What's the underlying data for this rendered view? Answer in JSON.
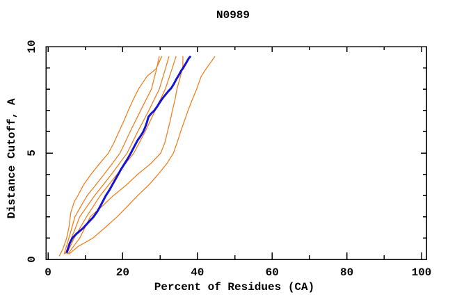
{
  "chart_data": {
    "type": "line",
    "title": "N0989",
    "xlabel": "Percent of Residues (CA)",
    "ylabel": "Distance Cutoff, A",
    "xlim": [
      0,
      100
    ],
    "ylim": [
      0,
      10
    ],
    "x_major_ticks": [
      0,
      20,
      40,
      60,
      80,
      100
    ],
    "x_minor_ticks": [
      10,
      30,
      50,
      70,
      90
    ],
    "y_major_ticks": [
      0,
      5,
      10
    ],
    "y_minor_ticks": [
      1,
      2,
      3,
      4,
      6,
      7,
      8,
      9
    ],
    "grid": false,
    "legend": "none",
    "frame_color": "#000000",
    "orange_color": "#ee8122",
    "blue_color": "#1414d2",
    "series": [
      {
        "name": "orange-1",
        "color": "#ee8122",
        "width": 1.3,
        "points": [
          [
            3.0,
            0.15
          ],
          [
            4.0,
            0.5
          ],
          [
            5.0,
            1.0
          ],
          [
            5.6,
            1.5
          ],
          [
            6.1,
            2.2
          ],
          [
            7.0,
            2.7
          ],
          [
            8.0,
            3.0
          ],
          [
            9.5,
            3.5
          ],
          [
            11.5,
            4.0
          ],
          [
            13.8,
            4.5
          ],
          [
            16.2,
            5.0
          ],
          [
            17.7,
            5.5
          ],
          [
            19.0,
            6.0
          ],
          [
            20.3,
            6.5
          ],
          [
            21.5,
            7.0
          ],
          [
            22.8,
            7.5
          ],
          [
            24.2,
            8.0
          ],
          [
            26.5,
            8.6
          ],
          [
            28.9,
            8.95
          ],
          [
            30.5,
            9.55
          ]
        ]
      },
      {
        "name": "orange-2",
        "color": "#ee8122",
        "width": 1.3,
        "points": [
          [
            4.3,
            0.25
          ],
          [
            5.6,
            1.0
          ],
          [
            7.2,
            2.0
          ],
          [
            8.8,
            2.5
          ],
          [
            10.5,
            3.0
          ],
          [
            12.8,
            3.5
          ],
          [
            15.0,
            4.0
          ],
          [
            17.2,
            4.5
          ],
          [
            19.3,
            5.0
          ],
          [
            22.0,
            6.0
          ],
          [
            24.8,
            7.0
          ],
          [
            27.7,
            8.0
          ],
          [
            29.0,
            8.9
          ],
          [
            29.8,
            9.55
          ]
        ]
      },
      {
        "name": "orange-3",
        "color": "#ee8122",
        "width": 1.3,
        "points": [
          [
            4.6,
            0.25
          ],
          [
            6.3,
            1.0
          ],
          [
            8.5,
            2.0
          ],
          [
            12.5,
            3.0
          ],
          [
            17.0,
            4.0
          ],
          [
            21.2,
            5.0
          ],
          [
            24.0,
            6.0
          ],
          [
            27.0,
            7.0
          ],
          [
            29.8,
            8.0
          ],
          [
            31.5,
            9.0
          ],
          [
            32.4,
            9.55
          ]
        ]
      },
      {
        "name": "orange-4",
        "color": "#ee8122",
        "width": 1.3,
        "points": [
          [
            5.0,
            0.25
          ],
          [
            7.0,
            1.0
          ],
          [
            10.3,
            2.0
          ],
          [
            14.0,
            3.0
          ],
          [
            18.5,
            4.0
          ],
          [
            23.0,
            5.0
          ],
          [
            26.0,
            6.0
          ],
          [
            28.7,
            7.0
          ],
          [
            31.4,
            8.0
          ],
          [
            33.3,
            9.0
          ],
          [
            34.3,
            9.55
          ]
        ]
      },
      {
        "name": "orange-5",
        "color": "#ee8122",
        "width": 1.3,
        "points": [
          [
            5.3,
            0.25
          ],
          [
            8.5,
            1.0
          ],
          [
            11.3,
            2.0
          ],
          [
            14.5,
            2.5
          ],
          [
            17.5,
            3.0
          ],
          [
            21.0,
            3.5
          ],
          [
            24.0,
            4.0
          ],
          [
            27.5,
            4.5
          ],
          [
            30.2,
            5.0
          ],
          [
            31.3,
            5.5
          ],
          [
            32.0,
            6.0
          ],
          [
            32.7,
            6.5
          ],
          [
            33.3,
            7.0
          ],
          [
            34.0,
            7.5
          ],
          [
            34.5,
            8.0
          ],
          [
            35.3,
            8.5
          ],
          [
            35.9,
            8.9
          ],
          [
            36.1,
            9.1
          ],
          [
            36.1,
            9.55
          ]
        ]
      },
      {
        "name": "orange-6",
        "color": "#ee8122",
        "width": 1.3,
        "points": [
          [
            5.6,
            0.25
          ],
          [
            8.0,
            0.6
          ],
          [
            12.0,
            1.0
          ],
          [
            15.3,
            1.5
          ],
          [
            18.5,
            2.0
          ],
          [
            21.3,
            2.5
          ],
          [
            24.0,
            3.0
          ],
          [
            27.0,
            3.5
          ],
          [
            29.5,
            4.0
          ],
          [
            31.8,
            4.5
          ],
          [
            33.6,
            5.0
          ],
          [
            34.6,
            5.5
          ],
          [
            35.5,
            6.0
          ],
          [
            36.5,
            6.5
          ],
          [
            37.5,
            7.0
          ],
          [
            38.6,
            7.5
          ],
          [
            39.8,
            8.0
          ],
          [
            41.0,
            8.6
          ],
          [
            42.5,
            9.0
          ],
          [
            44.7,
            9.54
          ]
        ]
      },
      {
        "name": "blue-bold",
        "color": "#1414d2",
        "width": 3,
        "points": [
          [
            5.0,
            0.3
          ],
          [
            5.8,
            0.75
          ],
          [
            6.5,
            1.0
          ],
          [
            7.6,
            1.2
          ],
          [
            9.3,
            1.45
          ],
          [
            10.6,
            1.7
          ],
          [
            12.2,
            2.0
          ],
          [
            13.2,
            2.25
          ],
          [
            14.0,
            2.5
          ],
          [
            15.5,
            3.0
          ],
          [
            16.4,
            3.25
          ],
          [
            17.2,
            3.5
          ],
          [
            18.0,
            3.75
          ],
          [
            18.8,
            4.0
          ],
          [
            19.6,
            4.25
          ],
          [
            20.5,
            4.5
          ],
          [
            21.4,
            4.75
          ],
          [
            22.2,
            5.0
          ],
          [
            23.1,
            5.3
          ],
          [
            24.0,
            5.6
          ],
          [
            24.8,
            5.8
          ],
          [
            25.5,
            6.0
          ],
          [
            26.0,
            6.2
          ],
          [
            26.5,
            6.45
          ],
          [
            26.9,
            6.7
          ],
          [
            27.6,
            6.85
          ],
          [
            28.5,
            7.0
          ],
          [
            29.3,
            7.2
          ],
          [
            30.0,
            7.4
          ],
          [
            30.8,
            7.6
          ],
          [
            31.5,
            7.75
          ],
          [
            32.2,
            7.9
          ],
          [
            33.0,
            8.05
          ],
          [
            33.7,
            8.25
          ],
          [
            34.3,
            8.45
          ],
          [
            35.0,
            8.65
          ],
          [
            35.6,
            8.85
          ],
          [
            36.2,
            9.0
          ],
          [
            36.7,
            9.15
          ],
          [
            37.2,
            9.3
          ],
          [
            37.7,
            9.45
          ],
          [
            38.2,
            9.55
          ]
        ]
      }
    ]
  }
}
